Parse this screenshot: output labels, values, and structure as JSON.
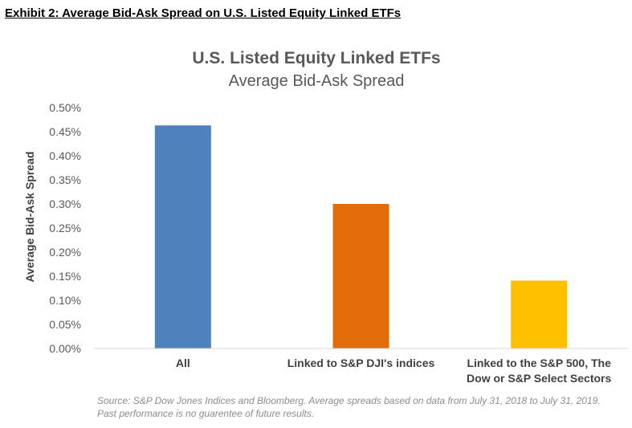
{
  "exhibit_title": "Exhibit 2: Average Bid-Ask Spread on U.S. Listed Equity Linked ETFs",
  "source_note": "Source: S&P Dow Jones Indices and Bloomberg. Average spreads based on data from July 31, 2018 to July 31, 2019. Past performance is no guarentee of future results.",
  "chart_data": {
    "type": "bar",
    "title": "U.S. Listed Equity Linked ETFs",
    "subtitle": "Average Bid-Ask Spread",
    "xlabel": "",
    "ylabel": "Average Bid-Ask Spread",
    "categories": [
      [
        "All"
      ],
      [
        "Linked to S&P DJI's indices"
      ],
      [
        "Linked to the S&P 500, The",
        "Dow or S&P Select Sectors"
      ]
    ],
    "values": [
      0.463,
      0.3,
      0.141
    ],
    "colors": [
      "#4f81bd",
      "#e36c0a",
      "#ffc000"
    ],
    "ylim": [
      0,
      0.5
    ],
    "yticks": [
      0,
      0.05,
      0.1,
      0.15,
      0.2,
      0.25,
      0.3,
      0.35,
      0.4,
      0.45,
      0.5
    ],
    "ytick_labels": [
      "0.00%",
      "0.05%",
      "0.10%",
      "0.15%",
      "0.20%",
      "0.25%",
      "0.30%",
      "0.35%",
      "0.40%",
      "0.45%",
      "0.50%"
    ],
    "grid": false,
    "legend": "none"
  }
}
